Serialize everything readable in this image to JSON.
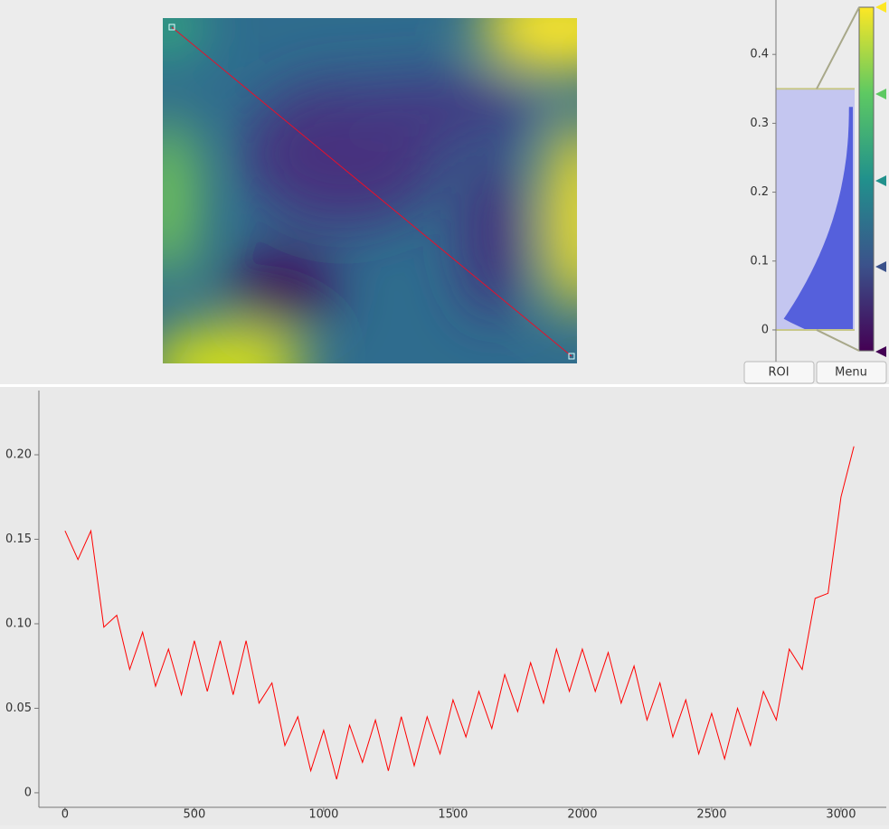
{
  "buttons": {
    "roi": "ROI",
    "menu": "Menu"
  },
  "histogram": {
    "ylim": [
      -0.046,
      0.479
    ],
    "yticks": [
      0,
      0.1,
      0.2,
      0.3,
      0.4
    ],
    "levels": [
      0,
      0.35
    ]
  },
  "chart_data": {
    "type": "line",
    "x": [
      0,
      50,
      100,
      150,
      200,
      250,
      300,
      350,
      400,
      450,
      500,
      550,
      600,
      650,
      700,
      750,
      800,
      850,
      900,
      950,
      1000,
      1050,
      1100,
      1150,
      1200,
      1250,
      1300,
      1350,
      1400,
      1450,
      1500,
      1550,
      1600,
      1650,
      1700,
      1750,
      1800,
      1850,
      1900,
      1950,
      2000,
      2050,
      2100,
      2150,
      2200,
      2250,
      2300,
      2350,
      2400,
      2450,
      2500,
      2550,
      2600,
      2650,
      2700,
      2750,
      2800,
      2850,
      2900,
      2950,
      3000,
      3050
    ],
    "values": [
      0.155,
      0.138,
      0.155,
      0.098,
      0.105,
      0.073,
      0.095,
      0.063,
      0.085,
      0.058,
      0.09,
      0.06,
      0.09,
      0.058,
      0.09,
      0.053,
      0.065,
      0.028,
      0.045,
      0.013,
      0.037,
      0.008,
      0.04,
      0.018,
      0.043,
      0.013,
      0.045,
      0.016,
      0.045,
      0.023,
      0.055,
      0.033,
      0.06,
      0.038,
      0.07,
      0.048,
      0.077,
      0.053,
      0.085,
      0.06,
      0.085,
      0.06,
      0.083,
      0.053,
      0.075,
      0.043,
      0.065,
      0.033,
      0.055,
      0.023,
      0.047,
      0.02,
      0.05,
      0.028,
      0.06,
      0.043,
      0.085,
      0.073,
      0.115,
      0.118,
      0.175,
      0.205
    ],
    "color": "#ff0000",
    "xlim": [
      -101,
      3175
    ],
    "ylim": [
      -0.0086,
      0.238
    ],
    "xticks": [
      0,
      500,
      1000,
      1500,
      2000,
      2500,
      3000
    ],
    "yticks": [
      0,
      0.05,
      {
        "value": 0.1,
        "label": "0.10"
      },
      0.15,
      {
        "value": 0.2,
        "label": "0.20"
      }
    ]
  }
}
